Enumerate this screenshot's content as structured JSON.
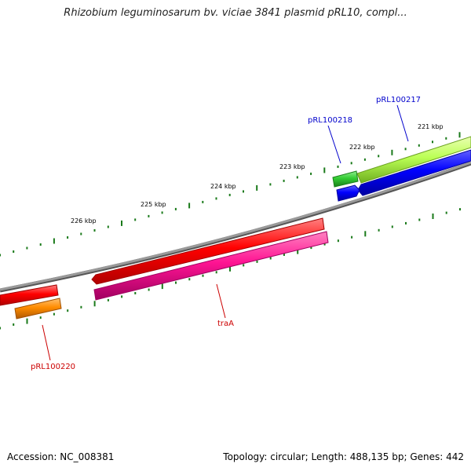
{
  "title": "Rhizobium leguminosarum bv. viciae 3841 plasmid pRL10, compl...",
  "scale_labels": [
    "226 kbp",
    "225 kbp",
    "224 kbp",
    "223 kbp",
    "222 kbp",
    "221 kbp"
  ],
  "genes": [
    {
      "name": "pRL100217",
      "color": "#0000cc"
    },
    {
      "name": "pRL100218",
      "color": "#0000cc"
    },
    {
      "name": "traA",
      "color": "#cc0000"
    },
    {
      "name": "pRL100220",
      "color": "#cc0000"
    }
  ],
  "footer": {
    "accession": "Accession: NC_008381",
    "topology": "Topology: circular; Length: 488,135 bp; Genes: 442"
  },
  "colors": {
    "backbone": "#888888",
    "tick": "#1a7a1a",
    "feature_red": "#ff0000",
    "feature_pink": "#ff1493",
    "feature_orange": "#ff8c00",
    "feature_blue": "#0000ff",
    "feature_green": "#33cc33",
    "feature_lightgreen": "#99ee33"
  }
}
